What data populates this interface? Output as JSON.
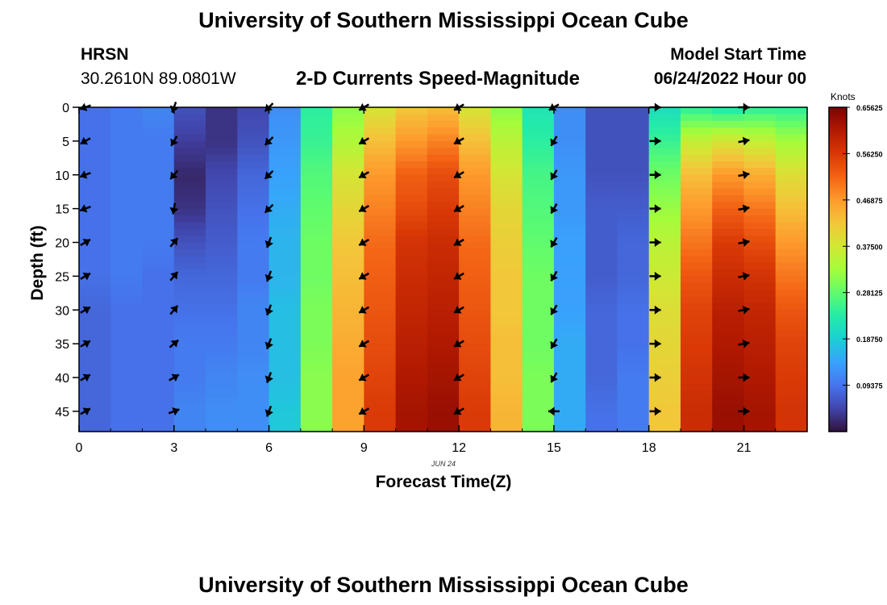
{
  "header": {
    "title": "University of Southern Mississippi Ocean Cube",
    "station": "HRSN",
    "coords": "30.2610N  89.0801W",
    "plot_title": "2-D Currents Speed-Magnitude",
    "model_label": "Model Start Time",
    "model_time": "06/24/2022 Hour 00",
    "date_label": "JUN 24",
    "footer_title": "University of Southern Mississippi Ocean Cube"
  },
  "colors": {
    "scale": [
      "#30123b",
      "#4145ab",
      "#4675ed",
      "#39a2fc",
      "#1bcfd4",
      "#24eca6",
      "#61fc6c",
      "#a4fc3b",
      "#d1e834",
      "#f3c63a",
      "#fe9b2d",
      "#f36315",
      "#d93806",
      "#b11901",
      "#7a0403"
    ],
    "arrow": "#000000"
  },
  "chart_data": {
    "type": "heatmap",
    "title": "2-D Currents Speed-Magnitude",
    "xlabel": "Forecast Time(Z)",
    "ylabel": "Depth (ft)",
    "x_ticks": [
      0,
      3,
      6,
      9,
      12,
      15,
      18,
      21
    ],
    "y_ticks": [
      0,
      5,
      10,
      15,
      20,
      25,
      30,
      35,
      40,
      45
    ],
    "xlim": [
      0,
      23
    ],
    "ylim": [
      48,
      0
    ],
    "colorbar": {
      "label": "Knots",
      "range": [
        0.0,
        0.65625
      ],
      "ticks": [
        "0.65625",
        "0.56250",
        "0.46875",
        "0.37500",
        "0.28125",
        "0.18750",
        "0.09375"
      ]
    },
    "hours": [
      0,
      1,
      2,
      3,
      4,
      5,
      6,
      7,
      8,
      9,
      10,
      11,
      12,
      13,
      14,
      15,
      16,
      17,
      18,
      19,
      20,
      21,
      22
    ],
    "depths": [
      0,
      5,
      10,
      15,
      20,
      25,
      30,
      35,
      40,
      45
    ],
    "speed": [
      [
        0.09,
        0.1,
        0.11,
        0.06,
        0.03,
        0.05,
        0.12,
        0.24,
        0.31,
        0.38,
        0.42,
        0.43,
        0.38,
        0.31,
        0.22,
        0.12,
        0.06,
        0.06,
        0.21,
        0.24,
        0.22,
        0.24,
        0.24
      ],
      [
        0.09,
        0.1,
        0.1,
        0.04,
        0.03,
        0.06,
        0.13,
        0.25,
        0.34,
        0.43,
        0.47,
        0.49,
        0.43,
        0.35,
        0.24,
        0.12,
        0.06,
        0.06,
        0.25,
        0.36,
        0.38,
        0.36,
        0.33
      ],
      [
        0.09,
        0.1,
        0.1,
        0.02,
        0.05,
        0.08,
        0.14,
        0.27,
        0.38,
        0.47,
        0.52,
        0.54,
        0.47,
        0.38,
        0.26,
        0.13,
        0.06,
        0.06,
        0.29,
        0.43,
        0.47,
        0.45,
        0.39
      ],
      [
        0.09,
        0.1,
        0.1,
        0.03,
        0.06,
        0.09,
        0.15,
        0.28,
        0.4,
        0.49,
        0.54,
        0.56,
        0.49,
        0.4,
        0.27,
        0.13,
        0.07,
        0.07,
        0.32,
        0.47,
        0.52,
        0.5,
        0.43
      ],
      [
        0.09,
        0.1,
        0.1,
        0.06,
        0.07,
        0.1,
        0.16,
        0.29,
        0.42,
        0.51,
        0.57,
        0.58,
        0.51,
        0.41,
        0.28,
        0.14,
        0.07,
        0.08,
        0.35,
        0.5,
        0.56,
        0.54,
        0.47
      ],
      [
        0.09,
        0.1,
        0.09,
        0.08,
        0.08,
        0.1,
        0.16,
        0.29,
        0.43,
        0.52,
        0.58,
        0.59,
        0.52,
        0.42,
        0.29,
        0.14,
        0.07,
        0.08,
        0.37,
        0.53,
        0.58,
        0.57,
        0.5
      ],
      [
        0.08,
        0.09,
        0.09,
        0.09,
        0.09,
        0.11,
        0.17,
        0.3,
        0.44,
        0.53,
        0.59,
        0.6,
        0.53,
        0.42,
        0.29,
        0.14,
        0.08,
        0.09,
        0.39,
        0.55,
        0.6,
        0.59,
        0.53
      ],
      [
        0.08,
        0.09,
        0.09,
        0.1,
        0.1,
        0.11,
        0.17,
        0.3,
        0.45,
        0.54,
        0.6,
        0.61,
        0.54,
        0.43,
        0.29,
        0.15,
        0.08,
        0.09,
        0.4,
        0.56,
        0.61,
        0.6,
        0.55
      ],
      [
        0.08,
        0.09,
        0.09,
        0.1,
        0.11,
        0.12,
        0.17,
        0.31,
        0.46,
        0.55,
        0.61,
        0.62,
        0.55,
        0.43,
        0.3,
        0.15,
        0.08,
        0.1,
        0.41,
        0.57,
        0.62,
        0.61,
        0.56
      ],
      [
        0.08,
        0.09,
        0.09,
        0.11,
        0.12,
        0.12,
        0.18,
        0.31,
        0.46,
        0.56,
        0.62,
        0.63,
        0.56,
        0.44,
        0.3,
        0.15,
        0.09,
        0.1,
        0.42,
        0.58,
        0.63,
        0.62,
        0.57
      ]
    ],
    "vectors": {
      "hours": [
        0.2,
        3,
        6,
        9,
        12,
        15,
        18.2,
        21
      ],
      "depths": [
        0,
        5,
        10,
        15,
        20,
        25,
        30,
        35,
        40,
        45
      ],
      "directions_deg": [
        [
          250,
          200,
          225,
          240,
          240,
          240,
          90,
          90
        ],
        [
          240,
          210,
          225,
          240,
          240,
          210,
          90,
          80
        ],
        [
          250,
          220,
          225,
          240,
          240,
          210,
          90,
          80
        ],
        [
          250,
          190,
          225,
          240,
          240,
          210,
          90,
          80
        ],
        [
          60,
          40,
          200,
          240,
          240,
          210,
          90,
          80
        ],
        [
          60,
          40,
          200,
          240,
          240,
          210,
          90,
          80
        ],
        [
          60,
          40,
          200,
          240,
          240,
          210,
          90,
          80
        ],
        [
          60,
          50,
          200,
          240,
          240,
          210,
          90,
          80
        ],
        [
          60,
          60,
          200,
          240,
          240,
          210,
          90,
          90
        ],
        [
          60,
          70,
          200,
          240,
          240,
          270,
          90,
          90
        ]
      ]
    }
  }
}
